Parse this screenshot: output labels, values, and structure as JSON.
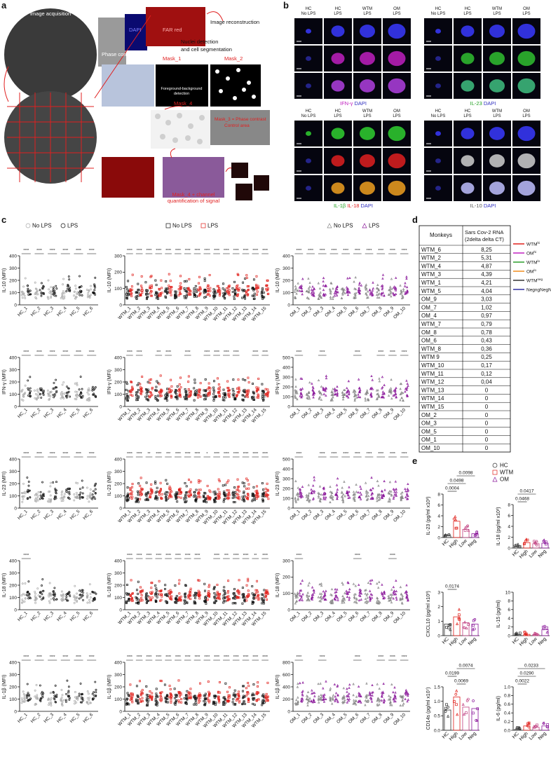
{
  "panels": {
    "a": "a",
    "b": "b",
    "c": "c",
    "d": "d",
    "e": "e"
  },
  "a": {
    "labels": [
      "Image acquisition",
      "DAPI",
      "FAR red",
      "Image reconstruction",
      "Phase contrast",
      "Nuclei detection",
      "and cell segmentation",
      "Mask_1",
      "Mask_2",
      "Foreground-background",
      "detection",
      "Mask_4",
      "Mask_3 = Phase contrast",
      "Control area",
      "Mask_4 + channel",
      "quantification of signal"
    ]
  },
  "b": {
    "groups": [
      {
        "headers": [
          [
            "HC",
            "No LPS"
          ],
          [
            "HC",
            "LPS"
          ],
          [
            "WTM",
            "LPS"
          ],
          [
            "OM",
            "LPS"
          ]
        ],
        "channels": [
          "#3a3aff",
          "#c020c0",
          "#b040e0"
        ],
        "caption": [
          {
            "text": "IFN-γ",
            "color": "#c020c0"
          },
          {
            "text": "DAPI",
            "color": "#3030c0"
          }
        ]
      },
      {
        "headers": [
          [
            "HC",
            "No LPS"
          ],
          [
            "HC",
            "LPS"
          ],
          [
            "WTM",
            "LPS"
          ],
          [
            "OM",
            "LPS"
          ]
        ],
        "channels": [
          "#3a3aff",
          "#30c030",
          "#40c080"
        ],
        "caption": [
          {
            "text": "IL-23",
            "color": "#20a020"
          },
          {
            "text": "DAPI",
            "color": "#3030c0"
          }
        ]
      },
      {
        "headers": [
          [
            "HC",
            "No LPS"
          ],
          [
            "HC",
            "LPS"
          ],
          [
            "WTM",
            "LPS"
          ],
          [
            "OM",
            "LPS"
          ]
        ],
        "channels": [
          "#30d030",
          "#e02020",
          "#f0a020"
        ],
        "caption": [
          {
            "text": "IL-1β",
            "color": "#20a020"
          },
          {
            "text": "IL-18",
            "color": "#e02020"
          },
          {
            "text": "DAPI",
            "color": "#3030c0"
          }
        ]
      },
      {
        "headers": [
          [
            "HC",
            "No LPS"
          ],
          [
            "HC",
            "LPS"
          ],
          [
            "WTM",
            "LPS"
          ],
          [
            "OM",
            "LPS"
          ]
        ],
        "channels": [
          "#3a3aff",
          "#d0d0d0",
          "#c0c0ff"
        ],
        "caption": [
          {
            "text": "IL-10",
            "color": "#555555"
          },
          {
            "text": "DAPI",
            "color": "#3030c0"
          }
        ]
      }
    ]
  },
  "c": {
    "groups": [
      {
        "categories": [
          "HC_1",
          "HC_2",
          "HC_3",
          "HC_4",
          "HC_5",
          "HC_6"
        ],
        "legend": [
          {
            "name": "No LPS",
            "color": "#aaaaaa"
          },
          {
            "name": "LPS",
            "color": "#111111"
          }
        ],
        "shape": "circle"
      },
      {
        "categories": [
          "WTM_1",
          "WTM_2",
          "WTM_3",
          "WTM_4",
          "WTM_5",
          "WTM_6",
          "WTM_7",
          "WTM_8",
          "WTM_9",
          "WTM_10",
          "WTM_11",
          "WTM_12",
          "WTM_13",
          "WTM_14",
          "WTM_15"
        ],
        "legend": [
          {
            "name": "No LPS",
            "color": "#111111"
          },
          {
            "name": "LPS",
            "color": "#e0201b"
          }
        ],
        "shape": "square"
      },
      {
        "categories": [
          "OM_1",
          "OM_2",
          "OM_3",
          "OM_4",
          "OM_5",
          "OM_6",
          "OM_7",
          "OM_8",
          "OM_9",
          "OM_10"
        ],
        "legend": [
          {
            "name": "No LPS",
            "color": "#888888"
          },
          {
            "name": "LPS",
            "color": "#8b1a9b"
          }
        ],
        "shape": "triangle"
      }
    ],
    "rows": [
      {
        "ylabel": "IL-10 (MFI)",
        "plots": [
          {
            "ylim": [
              0,
              400
            ],
            "yticks": [
              0,
              100,
              200,
              300,
              400
            ],
            "stars": [
              "****",
              "****",
              "****",
              "****",
              "****",
              "****"
            ]
          },
          {
            "ylim": [
              0,
              300
            ],
            "yticks": [
              0,
              100,
              200,
              300
            ],
            "stars": [
              "****",
              "****",
              "****",
              "****",
              "****",
              "****",
              "****",
              "****",
              "****",
              "****",
              "****",
              "****",
              "****",
              "****",
              "****"
            ]
          },
          {
            "ylim": [
              0,
              400
            ],
            "yticks": [
              0,
              100,
              200,
              300,
              400
            ],
            "stars": [
              "****",
              "****",
              "****",
              "****",
              "****",
              "****",
              "****",
              "****",
              "****",
              "****"
            ]
          }
        ]
      },
      {
        "ylabel": "IFN-γ (MFI)",
        "plots": [
          {
            "ylim": [
              0,
              400
            ],
            "yticks": [
              0,
              100,
              200,
              300,
              400
            ],
            "stars": [
              "****",
              "****",
              "****",
              "****",
              "****",
              "****"
            ]
          },
          {
            "ylim": [
              0,
              400
            ],
            "yticks": [
              0,
              100,
              200,
              300,
              400
            ],
            "stars": [
              "****",
              "****",
              null,
              "***",
              "****",
              null,
              "****",
              null,
              "****",
              "****",
              "****",
              "****",
              null,
              "****",
              "****"
            ]
          },
          {
            "ylim": [
              0,
              500
            ],
            "yticks": [
              0,
              100,
              200,
              300,
              400,
              500
            ],
            "stars": [
              "****",
              null,
              "****",
              null,
              null,
              "****",
              null,
              "****",
              "****",
              "****"
            ]
          }
        ]
      },
      {
        "ylabel": "IL-23 (MFI)",
        "plots": [
          {
            "ylim": [
              0,
              400
            ],
            "yticks": [
              0,
              100,
              200,
              300,
              400
            ],
            "stars": [
              "****",
              "****",
              "****",
              "****",
              "****",
              "****"
            ]
          },
          {
            "ylim": [
              0,
              400
            ],
            "yticks": [
              0,
              100,
              200,
              300,
              400
            ],
            "stars": [
              "****",
              "****",
              "**",
              "****",
              "***",
              "****",
              "****",
              "****",
              "*",
              "****",
              "****",
              "****",
              "****",
              "****",
              "****"
            ]
          },
          {
            "ylim": [
              0,
              500
            ],
            "yticks": [
              0,
              100,
              200,
              300,
              400,
              500
            ],
            "stars": [
              "****",
              null,
              "****",
              "****",
              "****",
              "****",
              "****",
              "****",
              "****",
              "****"
            ]
          }
        ]
      },
      {
        "ylabel": "IL-18 (MFI)",
        "plots": [
          {
            "ylim": [
              0,
              400
            ],
            "yticks": [
              0,
              100,
              200,
              300,
              400
            ],
            "stars": [
              "****",
              null,
              null,
              null,
              null,
              null
            ]
          },
          {
            "ylim": [
              0,
              400
            ],
            "yticks": [
              0,
              100,
              200,
              300,
              400
            ],
            "stars": [
              "****",
              "****",
              "****",
              "****",
              "****",
              "****",
              "****",
              "****",
              null,
              "****",
              "***",
              "****",
              "****",
              "**",
              "****"
            ]
          },
          {
            "ylim": [
              0,
              300
            ],
            "yticks": [
              0,
              100,
              200,
              300
            ],
            "stars": [
              "****",
              null,
              null,
              null,
              null,
              "****",
              null,
              null,
              "****",
              null
            ]
          }
        ]
      },
      {
        "ylabel": "IL-1β (MFI)",
        "plots": [
          {
            "ylim": [
              0,
              400
            ],
            "yticks": [
              0,
              100,
              200,
              300,
              400
            ],
            "stars": [
              "****",
              "****",
              "****",
              "****",
              "****",
              "****"
            ]
          },
          {
            "ylim": [
              0,
              400
            ],
            "yticks": [
              0,
              100,
              200,
              300,
              400
            ],
            "stars": [
              "****",
              "****",
              "****",
              "****",
              "****",
              "****",
              "****",
              "****",
              "****",
              "****",
              "****",
              "****",
              "****",
              "****",
              "****"
            ]
          },
          {
            "ylim": [
              0,
              800
            ],
            "yticks": [
              0,
              200,
              400,
              600,
              800
            ],
            "stars": [
              "****",
              null,
              "****",
              null,
              null,
              "****",
              null,
              "****",
              "****",
              "****"
            ]
          }
        ]
      }
    ]
  },
  "d": {
    "header": [
      "Monkeys",
      "Sars Cov-2 RNA",
      "(2delta delta CT)"
    ],
    "rows": [
      [
        "WTM_6",
        "8,25",
        "#d01010"
      ],
      [
        "WTM_2",
        "5,31",
        "#d01010"
      ],
      [
        "WTM_4",
        "4,87",
        "#d01010"
      ],
      [
        "WTM_3",
        "4,39",
        "#d01010"
      ],
      [
        "WTM_1",
        "4,21",
        "#d01010"
      ],
      [
        "WTM_5",
        "4,04",
        "#d01010"
      ],
      [
        "OM_9",
        "3,03",
        "#c020c0"
      ],
      [
        "OM_7",
        "1,02",
        "#c020c0"
      ],
      [
        "OM_4",
        "0,97",
        "#208a20"
      ],
      [
        "WTM_7",
        "0,79",
        "#e08010"
      ],
      [
        "OM_8",
        "0,78",
        "#208a20"
      ],
      [
        "OM_6",
        "0,43",
        "#208a20"
      ],
      [
        "WTM_8",
        "0,36",
        "#e08010"
      ],
      [
        "WTM 9",
        "0,25",
        "#e08010"
      ],
      [
        "WTM_10",
        "0,17",
        "#e08010"
      ],
      [
        "WTM_11",
        "0,12",
        "#e08010"
      ],
      [
        "WTM_12",
        "0,04",
        "#e08010"
      ],
      [
        "WTM_13",
        "0",
        "#555555"
      ],
      [
        "WTM_14",
        "0",
        "#555555"
      ],
      [
        "WTM_15",
        "0",
        "#555555"
      ],
      [
        "OM_2",
        "0",
        "#2020a0"
      ],
      [
        "OM_3",
        "0",
        "#2020a0"
      ],
      [
        "OM_5",
        "0",
        "#2020a0"
      ],
      [
        "OM_1",
        "0",
        "#2020a0"
      ],
      [
        "OM_10",
        "0",
        "#2020a0"
      ]
    ],
    "legend": [
      {
        "base": "WTM",
        "sup": "hi",
        "color": "#e0201b"
      },
      {
        "base": "OM",
        "sup": "hi",
        "color": "#c020c0"
      },
      {
        "base": "WTM",
        "sup": "lo",
        "color": "#2a9d2a"
      },
      {
        "base": "OM",
        "sup": "lo",
        "color": "#f08c1e"
      },
      {
        "base": "WTM",
        "sup": "neg",
        "color": "#333333"
      },
      {
        "base": "NegngNegNeg",
        "sup": "",
        "color": "#3030a0"
      }
    ]
  },
  "e": {
    "legend": [
      {
        "name": "HC",
        "color": "#333333"
      },
      {
        "name": "WTM",
        "color": "#e0201b"
      },
      {
        "name": "OM",
        "color": "#8b1a9b"
      }
    ],
    "categories": [
      "HC",
      "High",
      "Low",
      "Neg"
    ],
    "plots": [
      {
        "ylabel": "IL-23 (pg/ml x10²)",
        "ylim": [
          0,
          8
        ],
        "yticks": [
          0,
          2,
          4,
          6,
          8
        ],
        "values": [
          0.3,
          3,
          1.5,
          0.7
        ],
        "pvalues": [
          "0.0098",
          "0.0498",
          "0.0004"
        ]
      },
      {
        "ylabel": "IL-18 (pg/ml x10²)",
        "ylim": [
          0,
          8
        ],
        "yticks": [
          0,
          2,
          4,
          6,
          8
        ],
        "values": [
          0.3,
          1,
          0.8,
          0.9
        ],
        "pvalues": [
          "0.0417",
          "0.0468"
        ]
      },
      {
        "ylabel": "CXCL10 (pg/ml x10³)",
        "ylim": [
          0,
          3
        ],
        "yticks": [
          0,
          1,
          2,
          3
        ],
        "values": [
          0.8,
          1.3,
          0.9,
          0.8
        ],
        "pvalues": [
          "0.0174"
        ]
      },
      {
        "ylabel": "IL-15 (pg/ml)",
        "ylim": [
          0,
          10
        ],
        "yticks": [
          0,
          2,
          4,
          6,
          8,
          10
        ],
        "values": [
          0.2,
          0.3,
          0.3,
          1.4
        ],
        "pvalues": []
      },
      {
        "ylabel": "CD14s (pg/ml x10⁷)",
        "ylim": [
          0,
          1.5
        ],
        "yticks": [
          {
            "value": 0,
            "label": "0.0"
          },
          0.5,
          {
            "value": 1,
            "label": "1.0"
          },
          1.5
        ],
        "values": [
          0.7,
          1.15,
          0.8,
          0.75
        ],
        "pvalues": [
          "0.0074",
          "0.0199",
          "0.0069"
        ]
      },
      {
        "ylabel": "IL-6 (pg/ml)",
        "ylim": [
          0,
          1
        ],
        "yticks": [
          {
            "value": 0,
            "label": "0.0"
          },
          0.2,
          0.4,
          0.6,
          0.8,
          {
            "value": 1,
            "label": "1.0"
          }
        ],
        "values": [
          0.02,
          0.1,
          0.07,
          0.1
        ],
        "pvalues": [
          "0.0233",
          "0.0290",
          "0.0022"
        ]
      }
    ]
  }
}
